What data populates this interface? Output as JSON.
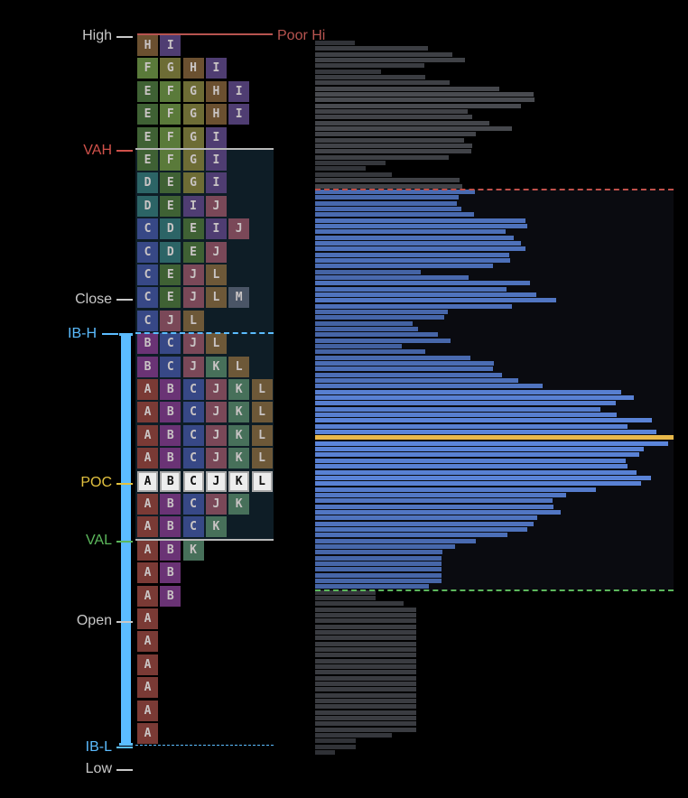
{
  "chart_data": {
    "type": "tpo-market-profile",
    "levels": {
      "high": "High",
      "poor_high": "Poor Hi",
      "vah": "VAH",
      "close": "Close",
      "ib_high": "IB-H",
      "poc": "POC",
      "val": "VAL",
      "open": "Open",
      "ib_low": "IB-L",
      "low": "Low"
    },
    "tpo_rows": [
      [
        "H",
        "I"
      ],
      [
        "F",
        "G",
        "H",
        "I"
      ],
      [
        "E",
        "F",
        "G",
        "H",
        "I"
      ],
      [
        "E",
        "F",
        "G",
        "H",
        "I"
      ],
      [
        "E",
        "F",
        "G",
        "I"
      ],
      [
        "E",
        "F",
        "G",
        "I"
      ],
      [
        "D",
        "E",
        "G",
        "I"
      ],
      [
        "D",
        "E",
        "I",
        "J"
      ],
      [
        "C",
        "D",
        "E",
        "I",
        "J"
      ],
      [
        "C",
        "D",
        "E",
        "J"
      ],
      [
        "C",
        "E",
        "J",
        "L"
      ],
      [
        "C",
        "E",
        "J",
        "L",
        "M"
      ],
      [
        "C",
        "J",
        "L"
      ],
      [
        "B",
        "C",
        "J",
        "L"
      ],
      [
        "B",
        "C",
        "J",
        "K",
        "L"
      ],
      [
        "A",
        "B",
        "C",
        "J",
        "K",
        "L"
      ],
      [
        "A",
        "B",
        "C",
        "J",
        "K",
        "L"
      ],
      [
        "A",
        "B",
        "C",
        "J",
        "K",
        "L"
      ],
      [
        "A",
        "B",
        "C",
        "J",
        "K",
        "L"
      ],
      [
        "A",
        "B",
        "C",
        "J",
        "K",
        "L"
      ],
      [
        "A",
        "B",
        "C",
        "J",
        "K"
      ],
      [
        "A",
        "B",
        "C",
        "K"
      ],
      [
        "A",
        "B",
        "K"
      ],
      [
        "A",
        "B"
      ],
      [
        "A",
        "B"
      ],
      [
        "A"
      ],
      [
        "A"
      ],
      [
        "A"
      ],
      [
        "A"
      ],
      [
        "A"
      ],
      [
        "A"
      ]
    ],
    "poc_row": 19,
    "value_area_rows": [
      5,
      21
    ],
    "close_row": 11,
    "open_row": 25,
    "ib_rows": [
      13,
      30
    ],
    "volume_profile": {
      "upper_outside": [
        44,
        125,
        152,
        166,
        121,
        73,
        122,
        149,
        204,
        242,
        243,
        228,
        169,
        174,
        193,
        218,
        178,
        165,
        174,
        173,
        148,
        78,
        56,
        85,
        160,
        163
      ],
      "value_area": [
        177,
        159,
        157,
        162,
        176,
        233,
        235,
        211,
        220,
        228,
        233,
        215,
        216,
        197,
        117,
        170,
        238,
        212,
        245,
        267,
        218,
        147,
        143,
        108,
        114,
        136,
        150,
        96,
        122,
        172,
        198,
        197,
        207,
        225,
        252,
        339,
        353,
        333,
        316,
        334,
        373,
        346,
        378,
        397,
        391,
        364,
        359,
        344,
        346,
        356,
        372,
        361,
        311,
        278,
        263,
        264,
        272,
        246,
        242,
        235,
        213,
        178,
        155,
        141,
        140,
        140,
        140,
        140,
        140,
        126
      ],
      "poc_index_in_value_area": 43,
      "lower_outside": [
        67,
        67,
        98,
        112,
        112,
        112,
        112,
        112,
        112,
        112,
        112,
        112,
        112,
        112,
        112,
        112,
        112,
        112,
        112,
        112,
        112,
        112,
        112,
        112,
        112,
        85,
        45,
        45,
        22
      ],
      "max": 397
    },
    "letter_colors": {
      "A": "#7a3a35",
      "B": "#6a3375",
      "C": "#374886",
      "D": "#2c6466",
      "E": "#3f6134",
      "F": "#5a7a3a",
      "G": "#6d6c35",
      "H": "#6b5030",
      "I": "#4f3d72",
      "J": "#7a4858",
      "K": "#47705a",
      "L": "#6d5838",
      "M": "#4a5566"
    },
    "colors": {
      "text": "#c8c8c8",
      "vah": "#d0514a",
      "poor_high": "#b85450",
      "poc": "#e3c23f",
      "val": "#5cb85c",
      "ib": "#5bbcff",
      "poc_bar": "#e8b84a",
      "value_area_bg": "#0e1d26",
      "profile_va_bg": "#0a0b10"
    }
  }
}
